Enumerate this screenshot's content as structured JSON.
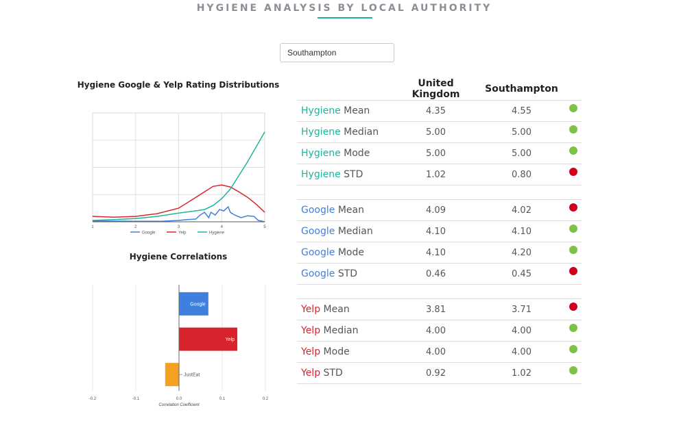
{
  "header": {
    "title": "HYGIENE ANALYSIS BY LOCAL AUTHORITY"
  },
  "search": {
    "value": "Southampton"
  },
  "colors": {
    "hygiene": "#1cb49b",
    "google": "#3f7fdd",
    "yelp": "#d8242d",
    "justeat": "#f5a020",
    "good": "#7cc243",
    "bad": "#d0021b",
    "teal_accent": "#1cb49b"
  },
  "distribution_chart": {
    "title": "Hygiene Google & Yelp Rating Distributions"
  },
  "correlation_chart": {
    "title": "Hygiene Correlations"
  },
  "chart_data": [
    {
      "type": "line",
      "title": "Hygiene Google & Yelp Rating Distributions",
      "x_ticks": [
        "1",
        "2",
        "3",
        "4",
        "5"
      ],
      "xlim": [
        1,
        5
      ],
      "ylim": [
        0,
        4
      ],
      "grid": true,
      "legend": "bottom",
      "series": [
        {
          "name": "Google",
          "color": "#3f7fdd",
          "points": [
            [
              1,
              0.03
            ],
            [
              2,
              0.02
            ],
            [
              2.6,
              0.02
            ],
            [
              3.0,
              0.05
            ],
            [
              3.2,
              0.08
            ],
            [
              3.4,
              0.1
            ],
            [
              3.5,
              0.25
            ],
            [
              3.6,
              0.35
            ],
            [
              3.7,
              0.15
            ],
            [
              3.75,
              0.35
            ],
            [
              3.85,
              0.25
            ],
            [
              3.95,
              0.45
            ],
            [
              4.05,
              0.4
            ],
            [
              4.15,
              0.55
            ],
            [
              4.2,
              0.35
            ],
            [
              4.3,
              0.25
            ],
            [
              4.45,
              0.15
            ],
            [
              4.6,
              0.22
            ],
            [
              4.75,
              0.2
            ],
            [
              4.85,
              0.05
            ],
            [
              5,
              0.0
            ]
          ]
        },
        {
          "name": "Yelp",
          "color": "#d8242d",
          "points": [
            [
              1,
              0.2
            ],
            [
              1.5,
              0.17
            ],
            [
              2,
              0.2
            ],
            [
              2.5,
              0.3
            ],
            [
              3,
              0.5
            ],
            [
              3.3,
              0.8
            ],
            [
              3.6,
              1.1
            ],
            [
              3.8,
              1.3
            ],
            [
              4,
              1.35
            ],
            [
              4.2,
              1.28
            ],
            [
              4.4,
              1.1
            ],
            [
              4.6,
              0.9
            ],
            [
              4.8,
              0.65
            ],
            [
              5,
              0.35
            ]
          ]
        },
        {
          "name": "Hygiene",
          "color": "#1cb49b",
          "points": [
            [
              1,
              0.05
            ],
            [
              1.5,
              0.08
            ],
            [
              2,
              0.12
            ],
            [
              2.5,
              0.2
            ],
            [
              3,
              0.32
            ],
            [
              3.3,
              0.38
            ],
            [
              3.6,
              0.45
            ],
            [
              3.8,
              0.6
            ],
            [
              4,
              0.85
            ],
            [
              4.2,
              1.2
            ],
            [
              4.4,
              1.7
            ],
            [
              4.6,
              2.2
            ],
            [
              4.8,
              2.75
            ],
            [
              5,
              3.3
            ]
          ]
        }
      ]
    },
    {
      "type": "bar",
      "orientation": "horizontal",
      "title": "Hygiene Correlations",
      "xlabel": "Correlation Coefficient",
      "x_ticks": [
        "-0.2",
        "-0.1",
        "0.0",
        "0.1",
        "0.2"
      ],
      "xlim": [
        -0.2,
        0.2
      ],
      "grid": true,
      "categories": [
        "Google",
        "Yelp",
        "JustEat"
      ],
      "values": [
        0.068,
        0.135,
        -0.032
      ],
      "colors": [
        "#3f7fdd",
        "#d8242d",
        "#f5a020"
      ]
    }
  ],
  "stats_table": {
    "headers": [
      "United Kingdom",
      "Southampton"
    ],
    "groups": [
      {
        "name": "Hygiene",
        "color": "#1cb49b",
        "rows": [
          {
            "metric": "Mean",
            "uk": "4.35",
            "local": "4.55",
            "status": "good"
          },
          {
            "metric": "Median",
            "uk": "5.00",
            "local": "5.00",
            "status": "good"
          },
          {
            "metric": "Mode",
            "uk": "5.00",
            "local": "5.00",
            "status": "good"
          },
          {
            "metric": "STD",
            "uk": "1.02",
            "local": "0.80",
            "status": "bad"
          }
        ]
      },
      {
        "name": "Google",
        "color": "#3f7fdd",
        "rows": [
          {
            "metric": "Mean",
            "uk": "4.09",
            "local": "4.02",
            "status": "bad"
          },
          {
            "metric": "Median",
            "uk": "4.10",
            "local": "4.10",
            "status": "good"
          },
          {
            "metric": "Mode",
            "uk": "4.10",
            "local": "4.20",
            "status": "good"
          },
          {
            "metric": "STD",
            "uk": "0.46",
            "local": "0.45",
            "status": "bad"
          }
        ]
      },
      {
        "name": "Yelp",
        "color": "#d8242d",
        "rows": [
          {
            "metric": "Mean",
            "uk": "3.81",
            "local": "3.71",
            "status": "bad"
          },
          {
            "metric": "Median",
            "uk": "4.00",
            "local": "4.00",
            "status": "good"
          },
          {
            "metric": "Mode",
            "uk": "4.00",
            "local": "4.00",
            "status": "good"
          },
          {
            "metric": "STD",
            "uk": "0.92",
            "local": "1.02",
            "status": "good"
          }
        ]
      }
    ]
  }
}
